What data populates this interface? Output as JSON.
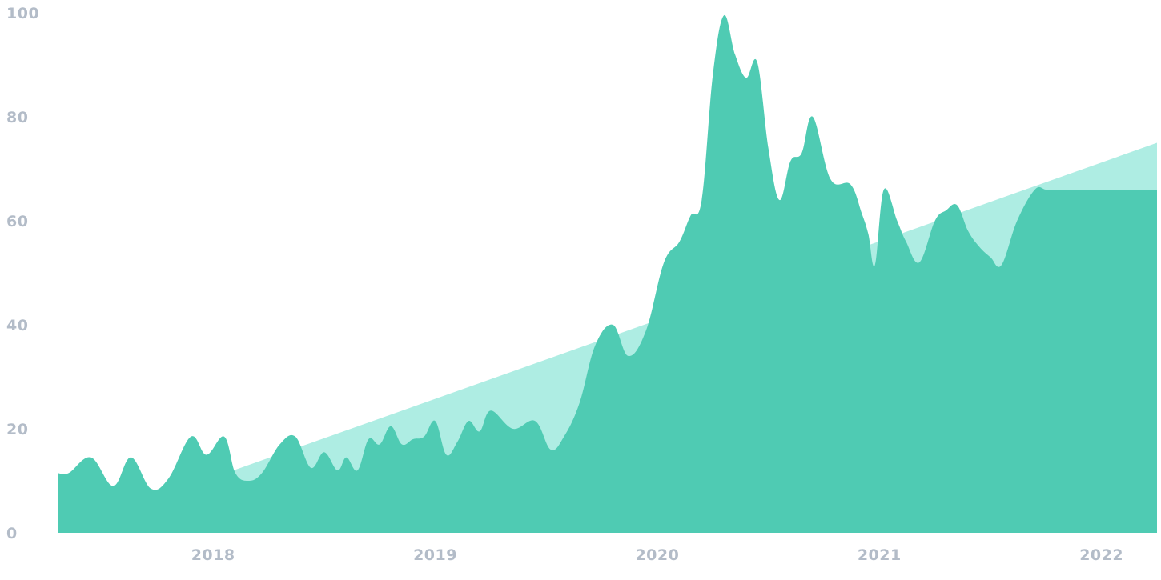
{
  "chart_data": {
    "type": "area",
    "title": "",
    "xlabel": "",
    "ylabel": "",
    "ylim": [
      0,
      100
    ],
    "xlim": [
      2017.3,
      2022.25
    ],
    "y_ticks": [
      0,
      20,
      40,
      60,
      80,
      100
    ],
    "y_tick_labels": [
      "0",
      "20",
      "40",
      "60",
      "80",
      "100"
    ],
    "x_ticks": [
      2018,
      2019,
      2020,
      2021,
      2022
    ],
    "x_tick_labels": [
      "2018",
      "2019",
      "2020",
      "2021",
      "2022"
    ],
    "grid": false,
    "legend": "none",
    "colors": {
      "series": "#4fcbb3",
      "trend": "#aeede3",
      "tick_text": "#b3bcc8"
    },
    "series": [
      {
        "values_x": [
          2017.3,
          2017.35,
          2017.45,
          2017.55,
          2017.63,
          2017.72,
          2017.8,
          2017.9,
          2017.97,
          2018.05,
          2018.1,
          2018.16,
          2018.22,
          2018.3,
          2018.37,
          2018.44,
          2018.5,
          2018.56,
          2018.6,
          2018.65,
          2018.7,
          2018.75,
          2018.8,
          2018.85,
          2018.9,
          2018.95,
          2019.0,
          2019.05,
          2019.1,
          2019.15,
          2019.2,
          2019.25,
          2019.35,
          2019.45,
          2019.52,
          2019.58,
          2019.65,
          2019.72,
          2019.8,
          2019.87,
          2019.95,
          2020.03,
          2020.1,
          2020.15,
          2020.2,
          2020.25,
          2020.3,
          2020.35,
          2020.4,
          2020.45,
          2020.5,
          2020.55,
          2020.6,
          2020.65,
          2020.7,
          2020.78,
          2020.87,
          2020.92,
          2020.95,
          2020.98,
          2021.02,
          2021.08,
          2021.12,
          2021.18,
          2021.25,
          2021.3,
          2021.35,
          2021.4,
          2021.45,
          2021.5,
          2021.55,
          2021.62,
          2021.7,
          2021.75,
          2021.8,
          2021.87,
          2021.92,
          2021.97,
          2022.03,
          2022.09,
          2022.12,
          2022.18,
          2022.25
        ],
        "values": [
          11.5,
          11.5,
          14.5,
          9.0,
          14.5,
          8.5,
          10.5,
          18.5,
          15.0,
          18.5,
          11.5,
          10.0,
          11.5,
          17.0,
          18.5,
          12.5,
          15.5,
          12.0,
          14.5,
          12.0,
          18.0,
          17.0,
          20.5,
          17.0,
          18.0,
          18.5,
          21.5,
          15.0,
          17.5,
          21.5,
          19.5,
          23.5,
          20.0,
          21.5,
          16.0,
          18.5,
          25.0,
          36.0,
          40.0,
          34.0,
          39.0,
          52.0,
          56.0,
          61.0,
          64.0,
          88.0,
          99.5,
          92.0,
          87.5,
          90.5,
          74.0,
          64.0,
          71.5,
          73.0,
          80.0,
          68.0,
          67.0,
          61.5,
          57.5,
          51.5,
          66.0,
          60.0,
          56.0,
          52.0,
          60.0,
          62.0,
          63.0,
          58.0,
          55.0,
          53.0,
          51.5,
          60.0,
          66.0,
          66.0,
          66.0,
          66.0,
          66.0,
          66.0,
          66.0,
          66.0,
          66.0,
          66.0,
          66.0
        ]
      }
    ],
    "trend": {
      "x": [
        2017.3,
        2022.25
      ],
      "y": [
        0.0,
        75.0
      ]
    }
  }
}
